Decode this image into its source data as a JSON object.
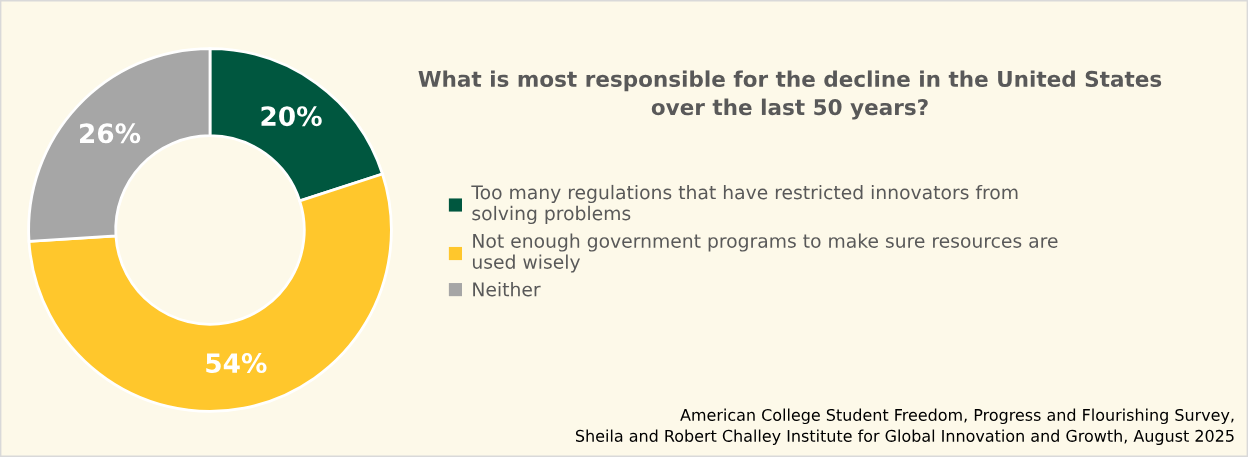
{
  "chart_data": {
    "type": "donut",
    "title": "What is most responsible for the decline in the United States\nover the last 50 years?",
    "categories": [
      "Too many regulations that have restricted innovators from\nsolving problems",
      "Not enough government programs to make sure resources are\nused wisely",
      "Neither"
    ],
    "values": [
      20,
      54,
      26
    ],
    "colors": [
      "#00573f",
      "#ffc72c",
      "#a6a6a6"
    ],
    "value_labels": [
      "20%",
      "54%",
      "26%"
    ],
    "legend": "right",
    "annotations": [
      "American College Student Freedom, Progress and Flourishing Survey,\nSheila and Robert Challey Institute for Global Innovation and Growth, August 2025"
    ]
  }
}
